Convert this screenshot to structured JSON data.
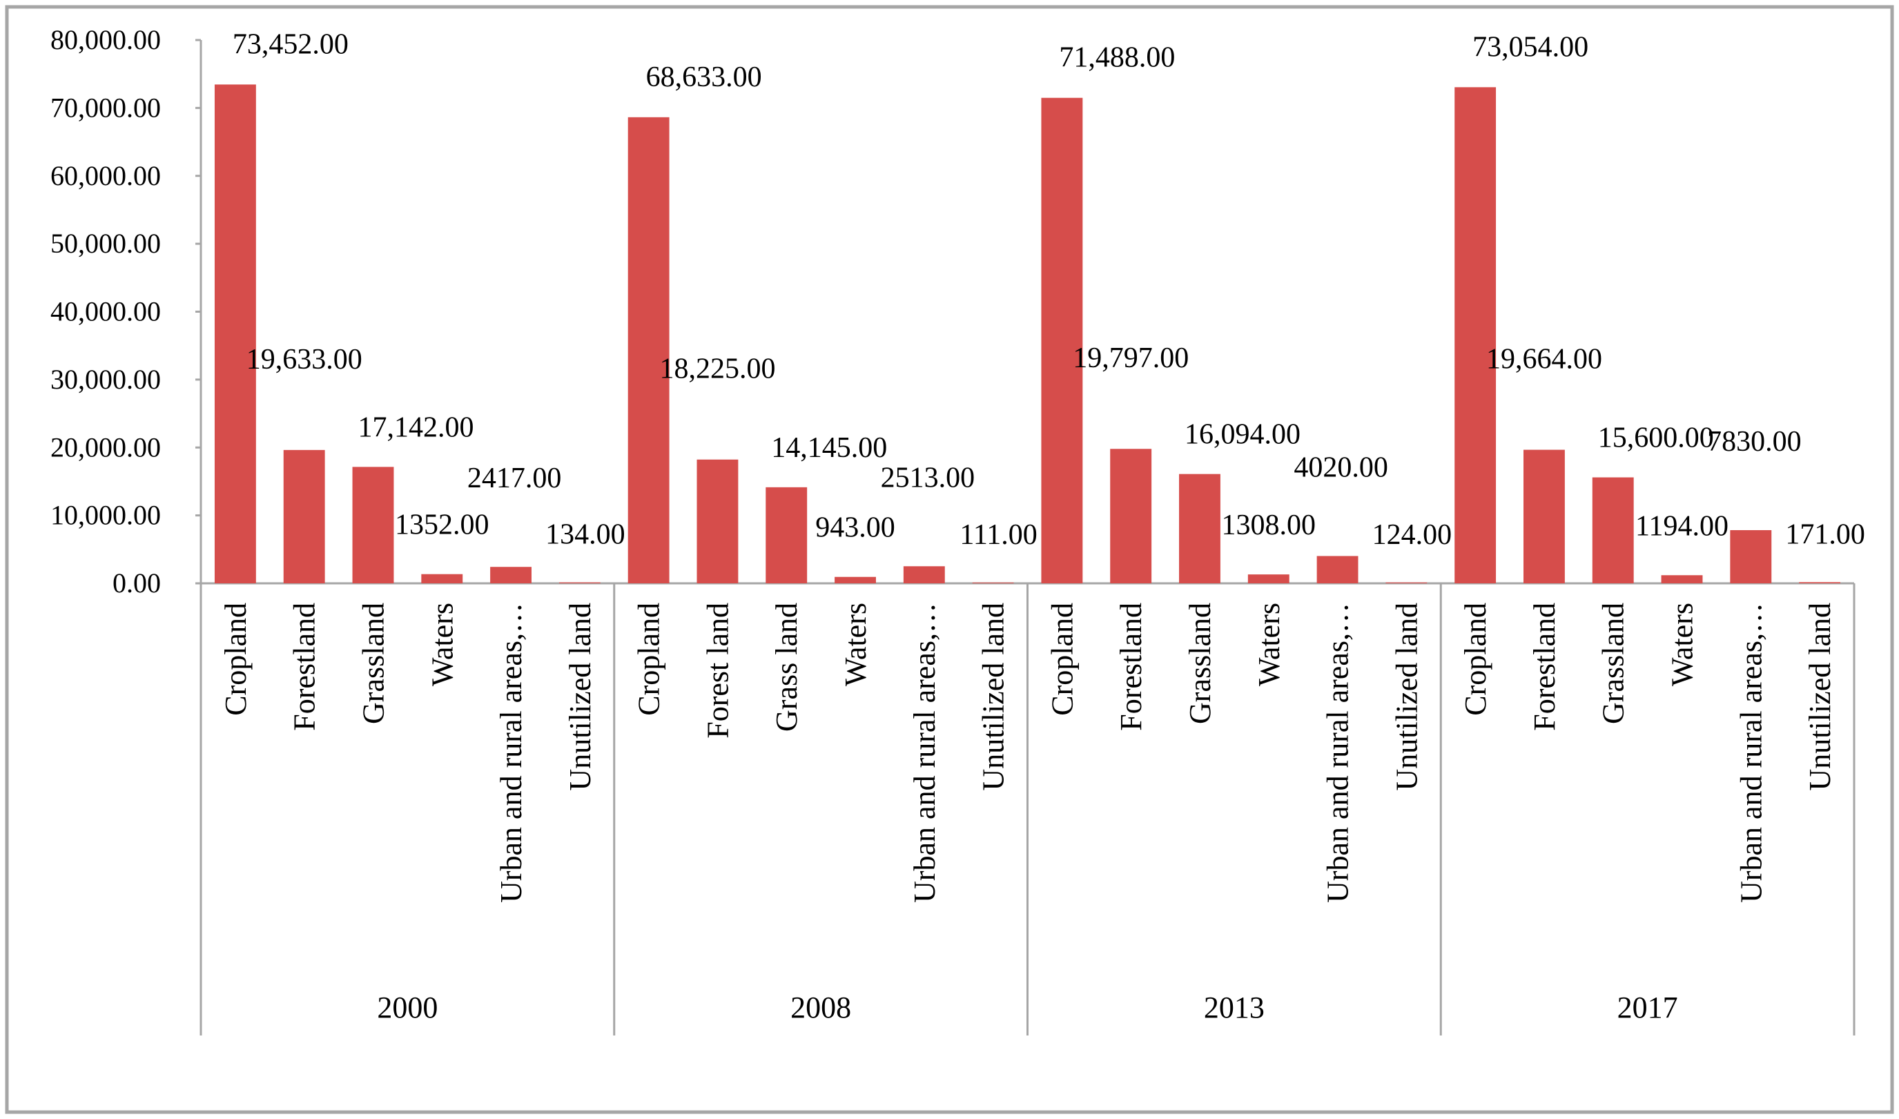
{
  "chart_data": {
    "type": "bar",
    "title": "",
    "xlabel": "",
    "ylabel": "",
    "ylim": [
      0,
      80000
    ],
    "y_ticks": [
      "0.00",
      "10,000.00",
      "20,000.00",
      "30,000.00",
      "40,000.00",
      "50,000.00",
      "60,000.00",
      "70,000.00",
      "80,000.00"
    ],
    "grid": false,
    "legend": "none",
    "bar_color": "#d64d4b",
    "groups": [
      {
        "year": "2000",
        "categories": [
          "Cropland",
          "Forestland",
          "Grassland",
          "Waters",
          "Urban and rural areas,…",
          "Unutilized land"
        ],
        "values": [
          73452,
          19633,
          17142,
          1352,
          2417,
          134
        ],
        "labels": [
          "73,452.00",
          "19,633.00",
          "17,142.00",
          "1352.00",
          "2417.00",
          "134.00"
        ]
      },
      {
        "year": "2008",
        "categories": [
          "Cropland",
          "Forest land",
          "Grass land",
          "Waters",
          "Urban and rural areas,…",
          "Unutilized land"
        ],
        "values": [
          68633,
          18225,
          14145,
          943,
          2513,
          111
        ],
        "labels": [
          "68,633.00",
          "18,225.00",
          "14,145.00",
          "943.00",
          "2513.00",
          "111.00"
        ]
      },
      {
        "year": "2013",
        "categories": [
          "Cropland",
          "Forestland",
          "Grassland",
          "Waters",
          "Urban and rural areas,…",
          "Unutilized land"
        ],
        "values": [
          71488,
          19797,
          16094,
          1308,
          4020,
          124
        ],
        "labels": [
          "71,488.00",
          "19,797.00",
          "16,094.00",
          "1308.00",
          "4020.00",
          "124.00"
        ]
      },
      {
        "year": "2017",
        "categories": [
          "Cropland",
          "Forestland",
          "Grassland",
          "Waters",
          "Urban and rural areas,…",
          "Unutilized land"
        ],
        "values": [
          73054,
          19664,
          15600,
          1194,
          7830,
          171
        ],
        "labels": [
          "73,054.00",
          "19,664.00",
          "15,600.00",
          "1194.00",
          "7830.00",
          "171.00"
        ]
      }
    ]
  }
}
